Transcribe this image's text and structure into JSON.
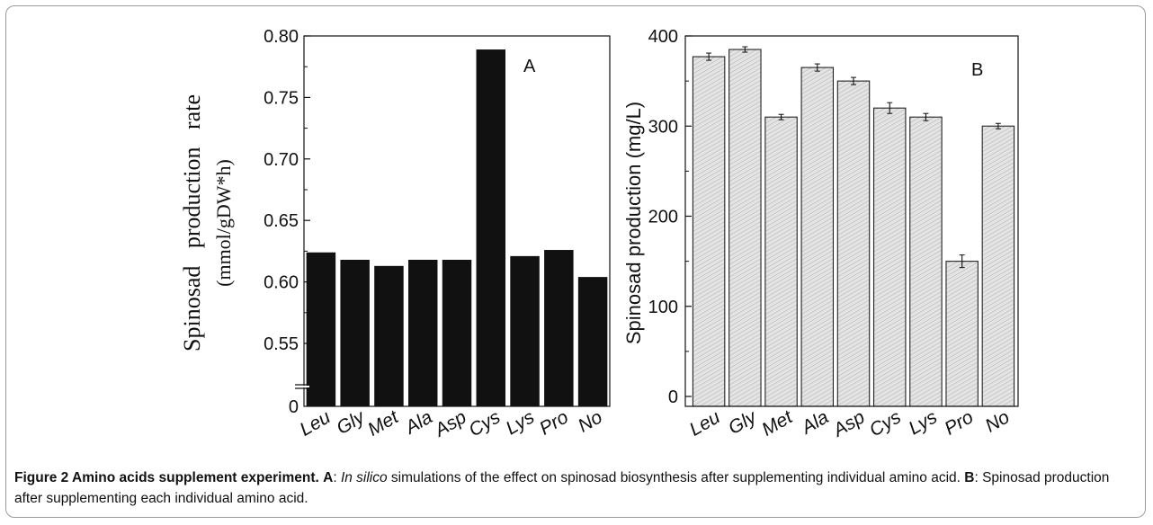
{
  "chart_data": [
    {
      "type": "bar",
      "panel_label": "A",
      "categories": [
        "Leu",
        "Gly",
        "Met",
        "Ala",
        "Asp",
        "Cys",
        "Lys",
        "Pro",
        "No"
      ],
      "values": [
        0.624,
        0.618,
        0.613,
        0.618,
        0.618,
        0.789,
        0.621,
        0.626,
        0.604
      ],
      "ylabel_line1": "Spinosad   production   rate",
      "ylabel_line2": "(mmol/gDW*h)",
      "yticks": [
        "0.80",
        "0.75",
        "0.70",
        "0.65",
        "0.60",
        "0.55",
        "0"
      ],
      "ytick_values": [
        0.8,
        0.75,
        0.7,
        0.65,
        0.6,
        0.55
      ],
      "ylim": [
        0.5,
        0.8
      ],
      "axis_break": true,
      "bar_color": "#111111"
    },
    {
      "type": "bar",
      "panel_label": "B",
      "categories": [
        "Leu",
        "Gly",
        "Met",
        "Ala",
        "Asp",
        "Cys",
        "Lys",
        "Pro",
        "No"
      ],
      "values": [
        377,
        385,
        310,
        365,
        350,
        320,
        310,
        150,
        300
      ],
      "errors": [
        4,
        3,
        3,
        4,
        4,
        6,
        4,
        7,
        3
      ],
      "ylabel": "Spinosad production (mg/L)",
      "yticks": [
        "400",
        "300",
        "200",
        "100",
        "0"
      ],
      "ytick_values": [
        400,
        300,
        200,
        100,
        0
      ],
      "ylim": [
        0,
        400
      ],
      "bar_fill": "#dcdcdc"
    }
  ],
  "caption": {
    "title": "Figure 2 Amino acids supplement experiment.",
    "a_label": "A",
    "a_sep": ": ",
    "a_italic": "In silico",
    "a_text": " simulations of the effect on spinosad biosynthesis after supplementing individual amino acid.",
    "b_label": "B",
    "b_text": ": Spinosad production after supplementing each individual amino acid."
  }
}
